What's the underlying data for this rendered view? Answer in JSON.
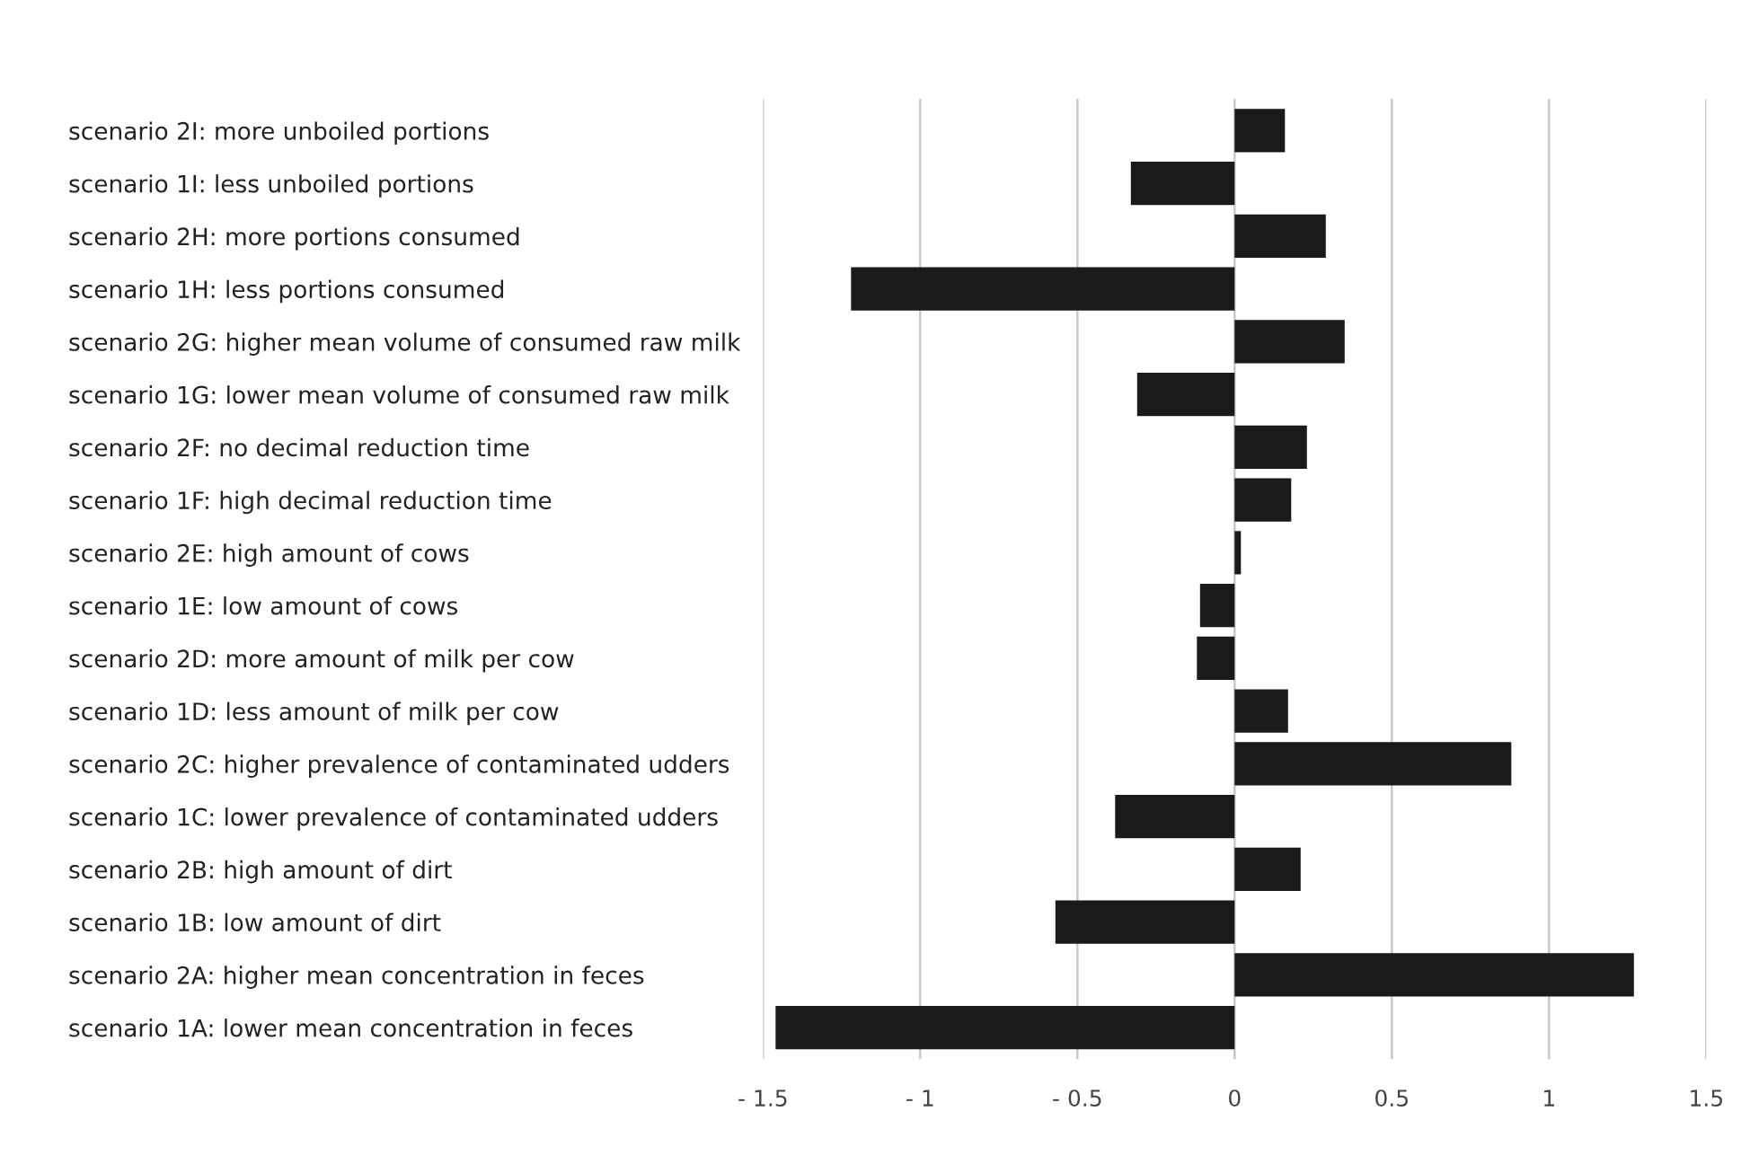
{
  "chart_data": {
    "type": "bar",
    "orientation": "horizontal",
    "categories": [
      "scenario 2I: more unboiled portions",
      "scenario 1I: less unboiled portions",
      "scenario 2H: more portions consumed",
      "scenario 1H: less portions consumed",
      "scenario 2G: higher mean volume of consumed raw milk",
      "scenario 1G: lower mean volume of consumed raw milk",
      "scenario 2F: no decimal reduction time",
      "scenario 1F: high decimal reduction time",
      "scenario 2E: high amount of cows",
      "scenario 1E: low amount of cows",
      "scenario 2D: more amount of milk per cow",
      "scenario 1D: less amount of milk per cow",
      "scenario 2C: higher prevalence of contaminated udders",
      "scenario 1C: lower prevalence of contaminated udders",
      "scenario 2B: high amount of dirt",
      "scenario 1B: low amount of dirt",
      "scenario 2A: higher mean concentration in feces",
      "scenario 1A: lower mean concentration in feces"
    ],
    "values": [
      0.16,
      -0.33,
      0.29,
      -1.22,
      0.35,
      -0.31,
      0.23,
      0.18,
      0.02,
      -0.11,
      -0.12,
      0.17,
      0.88,
      -0.38,
      0.21,
      -0.57,
      1.27,
      -1.46
    ],
    "color": "#1a1a1a",
    "xlim": [
      -1.5,
      1.5
    ],
    "xticks": [
      {
        "value": -1.5,
        "label": "- 1.5"
      },
      {
        "value": -1,
        "label": "- 1"
      },
      {
        "value": -0.5,
        "label": "- 0.5"
      },
      0,
      0.5,
      1,
      1.5
    ],
    "grid": "x",
    "legend": false
  }
}
